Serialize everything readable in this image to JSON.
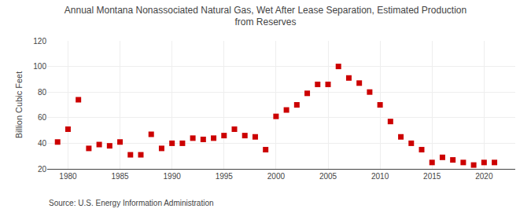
{
  "chart_data": {
    "type": "scatter",
    "title": "Annual Montana Nonassociated Natural Gas, Wet After Lease Separation, Estimated Production\nfrom Reserves",
    "ylabel": "Billion Cubic Feet",
    "annotations": [
      "Source: U.S. Energy Information Administration"
    ],
    "color": "#cc0000",
    "marker": "square",
    "grid": true,
    "xlim": [
      1978,
      2023
    ],
    "ylim": [
      20,
      120
    ],
    "xticks": [
      1980,
      1985,
      1990,
      1995,
      2000,
      2005,
      2010,
      2015,
      2020
    ],
    "yticks": [
      20,
      40,
      60,
      80,
      100,
      120
    ],
    "x": [
      1979,
      1980,
      1981,
      1982,
      1983,
      1984,
      1985,
      1986,
      1987,
      1988,
      1989,
      1990,
      1991,
      1992,
      1993,
      1994,
      1995,
      1996,
      1997,
      1998,
      1999,
      2000,
      2001,
      2002,
      2003,
      2004,
      2005,
      2006,
      2007,
      2008,
      2009,
      2010,
      2011,
      2012,
      2013,
      2014,
      2015,
      2016,
      2017,
      2018,
      2019,
      2020,
      2021
    ],
    "values": [
      41,
      51,
      74,
      36,
      39,
      38,
      41,
      31,
      31,
      47,
      36,
      40,
      40,
      44,
      43,
      44,
      46,
      51,
      46,
      45,
      35,
      61,
      66,
      70,
      79,
      86,
      86,
      100,
      91,
      87,
      80,
      70,
      57,
      45,
      40,
      35,
      25,
      29,
      27,
      25,
      23,
      25,
      25
    ]
  }
}
